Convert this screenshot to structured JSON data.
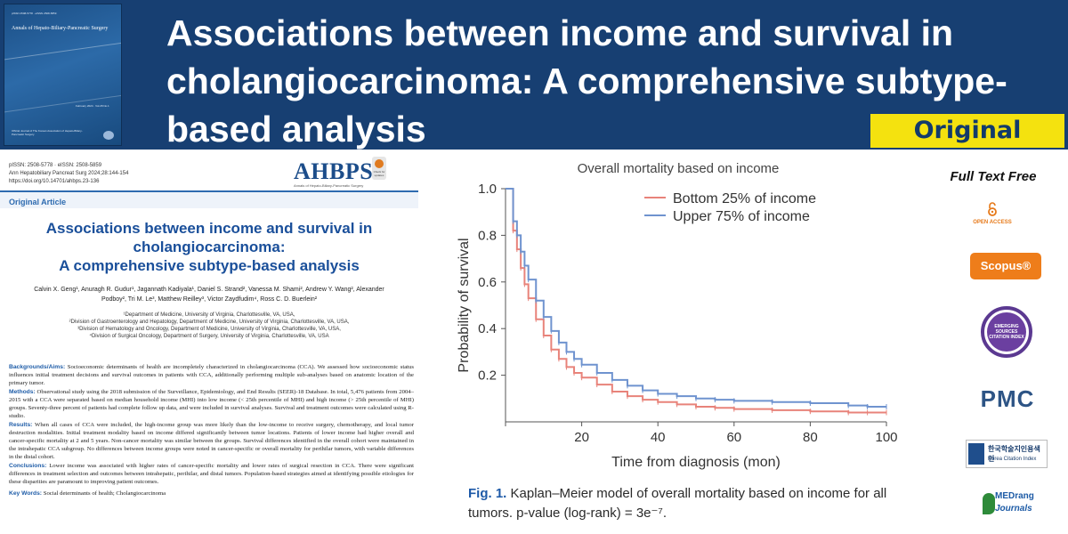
{
  "banner": {
    "title": "Associations between income and survival in cholangiocarcinoma: A comprehensive subtype-based analysis",
    "badge": "Original Article",
    "cover": {
      "journal": "Annals of Hepato-Biliary-Pancreatic Surgery",
      "small_top": "pISSN 2508-5778 · eISSN 2508-5859",
      "volume": "February 2024 · Vol.28 No.1",
      "footer": "Official Journal of The Korean Association of Hepato-Biliary-Pancreatic Surgery"
    }
  },
  "paper": {
    "meta": [
      "pISSN: 2508-5778 · eISSN: 2508-5859",
      "Ann Hepatobiliary Pancreat Surg 2024;28:144-154",
      "https://doi.org/10.14701/ahbps.23-136"
    ],
    "journal_logo": "AHBPS",
    "journal_logo_sub": "Annals of Hepato-Biliary-Pancreatic Surgery",
    "check_updates": "Check for updates",
    "section": "Original Article",
    "title_lines": [
      "Associations between income and survival in",
      "cholangiocarcinoma:",
      "A comprehensive subtype-based analysis"
    ],
    "authors": "Calvin X. Geng¹, Anuragh R. Gudur¹, Jagannath Kadiyala¹, Daniel S. Strand², Vanessa M. Shami², Andrew Y. Wang², Alexander Podboy², Tri M. Le³, Matthew Reilley³, Victor Zaydfudim⁴, Ross C. D. Buerlein²",
    "affiliations": [
      "¹Department of Medicine, University of Virginia, Charlottesville, VA, USA,",
      "²Division of Gastroenterology and Hepatology, Department of Medicine, University of Virginia, Charlottesville, VA, USA,",
      "³Division of Hematology and Oncology, Department of Medicine, University of Virginia, Charlottesville, VA, USA,",
      "⁴Division of Surgical Oncology, Department of Surgery, University of Virginia, Charlottesville, VA, USA"
    ],
    "abstract": [
      {
        "heading": "Backgrounds/Aims:",
        "text": " Socioeconomic determinants of health are incompletely characterized in cholangiocarcinoma (CCA). We assessed how socioeconomic status influences initial treatment decisions and survival outcomes in patients with CCA, additionally performing multiple sub-analyses based on anatomic location of the primary tumor."
      },
      {
        "heading": "Methods:",
        "text": " Observational study using the 2018 submission of the Surveillance, Epidemiology, and End Results (SEER)-18 Database. In total, 5,476 patients from 2004–2015 with a CCA were separated based on median household income (MHI) into low income (< 25th percentile of MHI) and high income (> 25th percentile of MHI) groups. Seventy-three percent of patients had complete follow up data, and were included in survival analyses. Survival and treatment outcomes were calculated using R-studio."
      },
      {
        "heading": "Results:",
        "text": " When all cases of CCA were included, the high-income group was more likely than the low-income to receive surgery, chemotherapy, and local tumor destruction modalities. Initial treatment modality based on income differed significantly between tumor locations. Patients of lower income had higher overall and cancer-specific mortality at 2 and 5 years. Non-cancer mortality was similar between the groups. Survival differences identified in the overall cohort were maintained in the intrahepatic CCA subgroup. No differences between income groups were noted in cancer-specific or overall mortality for perihilar tumors, with variable differences in the distal cohort."
      },
      {
        "heading": "Conclusions:",
        "text": " Lower income was associated with higher rates of cancer-specific mortality and lower rates of surgical resection in CCA. There were significant differences in treatment selection and outcomes between intrahepatic, perihilar, and distal tumors. Population-based strategies aimed at identifying possible etiologies for these disparities are paramount to improving patient outcomes."
      },
      {
        "heading": "Key Words:",
        "text": " Social determinants of health; Cholangiocarcinoma"
      }
    ]
  },
  "figure": {
    "caption_label": "Fig. 1.",
    "caption_text": " Kaplan–Meier model of overall mortality based on income for all tumors. p-value (log-rank) = 3e⁻⁷."
  },
  "chart_data": {
    "type": "line",
    "title": "Overall mortality based on income",
    "xlabel": "Time from diagnosis (mon)",
    "ylabel": "Probability of survival",
    "xlim": [
      0,
      100
    ],
    "ylim": [
      0,
      1.0
    ],
    "xticks": [
      20,
      40,
      60,
      80,
      100
    ],
    "yticks": [
      0.2,
      0.4,
      0.6,
      0.8,
      1.0
    ],
    "legend_position": "top-right",
    "series": [
      {
        "name": "Bottom 25% of income",
        "color": "#e8837a",
        "x": [
          0,
          2,
          3,
          4,
          5,
          6,
          8,
          10,
          12,
          14,
          16,
          18,
          20,
          24,
          28,
          32,
          36,
          40,
          45,
          50,
          55,
          60,
          70,
          80,
          90,
          95,
          100
        ],
        "y": [
          1.0,
          0.82,
          0.74,
          0.66,
          0.59,
          0.53,
          0.44,
          0.37,
          0.31,
          0.27,
          0.235,
          0.21,
          0.19,
          0.16,
          0.13,
          0.11,
          0.095,
          0.085,
          0.075,
          0.065,
          0.06,
          0.055,
          0.05,
          0.045,
          0.04,
          0.04,
          0.04
        ]
      },
      {
        "name": "Upper 75% of income",
        "color": "#6f93cf",
        "x": [
          0,
          2,
          3,
          4,
          5,
          6,
          8,
          10,
          12,
          14,
          16,
          18,
          20,
          24,
          28,
          32,
          36,
          40,
          45,
          50,
          55,
          60,
          70,
          80,
          90,
          95,
          100
        ],
        "y": [
          1.0,
          0.86,
          0.8,
          0.73,
          0.67,
          0.61,
          0.52,
          0.45,
          0.39,
          0.34,
          0.3,
          0.27,
          0.245,
          0.21,
          0.18,
          0.155,
          0.135,
          0.12,
          0.11,
          0.1,
          0.095,
          0.09,
          0.085,
          0.08,
          0.07,
          0.065,
          0.065
        ]
      }
    ]
  },
  "sidebar": {
    "full_text": "Full Text Free",
    "open_access": "OPEN ACCESS",
    "scopus": "Scopus®",
    "esci": "EMERGING SOURCES CITATION INDEX",
    "pmc": "PMC",
    "kci_korean": "한국학술지인용색인",
    "kci_english": "Korea Citation Index",
    "medrang_1": "MEDrang",
    "medrang_2": "Journals"
  }
}
